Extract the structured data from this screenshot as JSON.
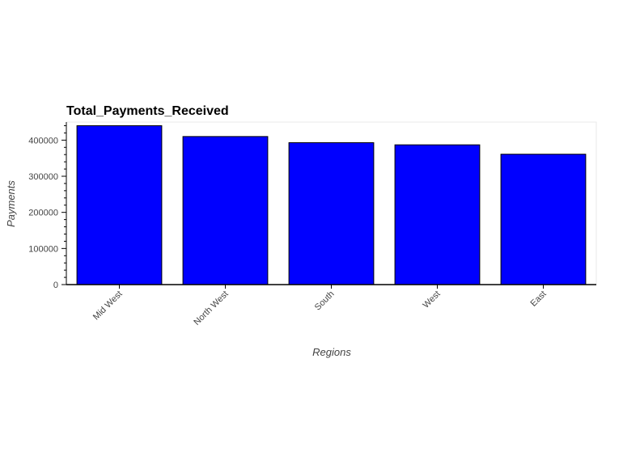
{
  "chart_data": {
    "type": "bar",
    "title": "Total_Payments_Received",
    "xlabel": "Regions",
    "ylabel": "Payments",
    "categories": [
      "Mid West",
      "North West",
      "South",
      "West",
      "East"
    ],
    "values": [
      440000,
      410000,
      393000,
      387000,
      361000
    ],
    "ylim": [
      0,
      450000
    ],
    "yticks": [
      "0",
      "100000",
      "200000",
      "300000",
      "400000"
    ],
    "bar_color": "#0000ff",
    "bar_edge_color": "#000000",
    "grid": false,
    "legend": "none"
  }
}
